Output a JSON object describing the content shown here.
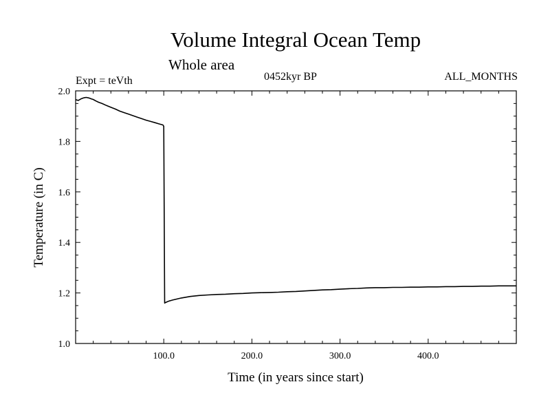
{
  "chart_data": {
    "type": "line",
    "title": "Volume Integral Ocean Temp",
    "subtitle": "Whole area",
    "experiment": "Expt = teVth",
    "period": "0452kyr BP",
    "months": "ALL_MONTHS",
    "xlabel": "Time (in years since start)",
    "ylabel": "Temperature (in C)",
    "xlim": [
      0,
      500
    ],
    "ylim": [
      1.0,
      2.0
    ],
    "xticks": [
      100,
      200,
      300,
      400
    ],
    "xtick_labels": [
      "100.0",
      "200.0",
      "300.0",
      "400.0"
    ],
    "yticks": [
      1.0,
      1.2,
      1.4,
      1.6,
      1.8,
      2.0
    ],
    "ytick_labels": [
      "1.0",
      "1.2",
      "1.4",
      "1.6",
      "1.8",
      "2.0"
    ],
    "series": [
      {
        "name": "Volume Integral Ocean Temp",
        "color": "#000000",
        "x": [
          0,
          3,
          6,
          8,
          10,
          12,
          15,
          18,
          20,
          23,
          26,
          30,
          35,
          40,
          45,
          50,
          55,
          60,
          65,
          70,
          75,
          80,
          85,
          90,
          95,
          99,
          99.5,
          100,
          101,
          102,
          104,
          106,
          108,
          110,
          115,
          120,
          125,
          130,
          140,
          150,
          160,
          170,
          180,
          190,
          200,
          210,
          220,
          230,
          240,
          250,
          260,
          270,
          280,
          290,
          300,
          310,
          320,
          330,
          340,
          350,
          360,
          370,
          380,
          390,
          400,
          410,
          420,
          430,
          440,
          450,
          460,
          470,
          480,
          490,
          500
        ],
        "values": [
          1.965,
          1.962,
          1.968,
          1.971,
          1.973,
          1.974,
          1.972,
          1.968,
          1.966,
          1.96,
          1.955,
          1.95,
          1.942,
          1.935,
          1.928,
          1.92,
          1.914,
          1.908,
          1.902,
          1.896,
          1.89,
          1.884,
          1.879,
          1.874,
          1.869,
          1.865,
          1.862,
          1.86,
          1.16,
          1.162,
          1.165,
          1.168,
          1.17,
          1.172,
          1.176,
          1.18,
          1.183,
          1.186,
          1.19,
          1.192,
          1.194,
          1.195,
          1.197,
          1.198,
          1.2,
          1.201,
          1.202,
          1.203,
          1.205,
          1.206,
          1.208,
          1.21,
          1.212,
          1.213,
          1.215,
          1.217,
          1.218,
          1.22,
          1.221,
          1.221,
          1.222,
          1.222,
          1.223,
          1.223,
          1.224,
          1.224,
          1.225,
          1.225,
          1.226,
          1.226,
          1.227,
          1.227,
          1.228,
          1.228,
          1.228
        ]
      }
    ]
  }
}
